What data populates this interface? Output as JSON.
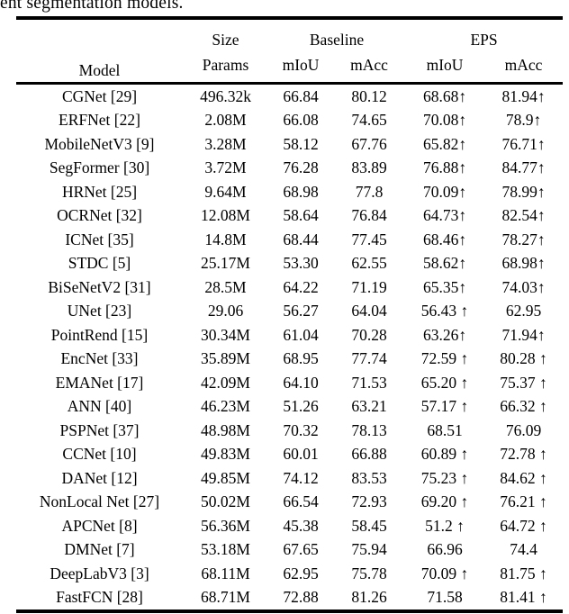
{
  "page": {
    "background": "#ffffff",
    "text_color": "#000000",
    "rule_color": "#000000"
  },
  "caption_fragment": "ent segmentation models.",
  "table": {
    "header": {
      "model": "Model",
      "size": "Size",
      "params": "Params",
      "baseline": "Baseline",
      "eps": "EPS",
      "miou": "mIoU",
      "macc": "mAcc"
    },
    "columns": [
      "Model",
      "Size Params",
      "Baseline mIoU",
      "Baseline mAcc",
      "EPS mIoU",
      "EPS mAcc"
    ],
    "rows": [
      {
        "model": "CGNet [29]",
        "params": "496.32k",
        "baseline_miou": "66.84",
        "baseline_macc": "80.12",
        "eps_miou": "68.68↑",
        "eps_macc": "81.94↑"
      },
      {
        "model": "ERFNet [22]",
        "params": "2.08M",
        "baseline_miou": "66.08",
        "baseline_macc": "74.65",
        "eps_miou": "70.08↑",
        "eps_macc": "78.9↑"
      },
      {
        "model": "MobileNetV3 [9]",
        "params": "3.28M",
        "baseline_miou": "58.12",
        "baseline_macc": "67.76",
        "eps_miou": "65.82↑",
        "eps_macc": "76.71↑"
      },
      {
        "model": "SegFormer [30]",
        "params": "3.72M",
        "baseline_miou": "76.28",
        "baseline_macc": "83.89",
        "eps_miou": "76.88↑",
        "eps_macc": "84.77↑"
      },
      {
        "model": "HRNet [25]",
        "params": "9.64M",
        "baseline_miou": "68.98",
        "baseline_macc": "77.8",
        "eps_miou": "70.09↑",
        "eps_macc": "78.99↑"
      },
      {
        "model": "OCRNet [32]",
        "params": "12.08M",
        "baseline_miou": "58.64",
        "baseline_macc": "76.84",
        "eps_miou": "64.73↑",
        "eps_macc": "82.54↑"
      },
      {
        "model": "ICNet [35]",
        "params": "14.8M",
        "baseline_miou": "68.44",
        "baseline_macc": "77.45",
        "eps_miou": "68.46↑",
        "eps_macc": "78.27↑"
      },
      {
        "model": "STDC [5]",
        "params": "25.17M",
        "baseline_miou": "53.30",
        "baseline_macc": "62.55",
        "eps_miou": "58.62↑",
        "eps_macc": "68.98↑"
      },
      {
        "model": "BiSeNetV2 [31]",
        "params": "28.5M",
        "baseline_miou": "64.22",
        "baseline_macc": "71.19",
        "eps_miou": "65.35↑",
        "eps_macc": "74.03↑"
      },
      {
        "model": "UNet [23]",
        "params": "29.06",
        "baseline_miou": "56.27",
        "baseline_macc": "64.04",
        "eps_miou": "56.43 ↑",
        "eps_macc": "62.95"
      },
      {
        "model": "PointRend [15]",
        "params": "30.34M",
        "baseline_miou": "61.04",
        "baseline_macc": "70.28",
        "eps_miou": "63.26↑",
        "eps_macc": "71.94↑"
      },
      {
        "model": "EncNet [33]",
        "params": "35.89M",
        "baseline_miou": "68.95",
        "baseline_macc": "77.74",
        "eps_miou": "72.59 ↑",
        "eps_macc": "80.28 ↑"
      },
      {
        "model": "EMANet [17]",
        "params": "42.09M",
        "baseline_miou": "64.10",
        "baseline_macc": "71.53",
        "eps_miou": "65.20 ↑",
        "eps_macc": "75.37 ↑"
      },
      {
        "model": "ANN [40]",
        "params": "46.23M",
        "baseline_miou": "51.26",
        "baseline_macc": "63.21",
        "eps_miou": "57.17 ↑",
        "eps_macc": "66.32 ↑"
      },
      {
        "model": "PSPNet [37]",
        "params": "48.98M",
        "baseline_miou": "70.32",
        "baseline_macc": "78.13",
        "eps_miou": "68.51",
        "eps_macc": "76.09"
      },
      {
        "model": "CCNet [10]",
        "params": "49.83M",
        "baseline_miou": "60.01",
        "baseline_macc": "66.88",
        "eps_miou": "60.89 ↑",
        "eps_macc": "72.78 ↑"
      },
      {
        "model": "DANet [12]",
        "params": "49.85M",
        "baseline_miou": "74.12",
        "baseline_macc": "83.53",
        "eps_miou": "75.23 ↑",
        "eps_macc": "84.62 ↑"
      },
      {
        "model": "NonLocal Net [27]",
        "params": "50.02M",
        "baseline_miou": "66.54",
        "baseline_macc": "72.93",
        "eps_miou": "69.20 ↑",
        "eps_macc": "76.21 ↑"
      },
      {
        "model": "APCNet [8]",
        "params": "56.36M",
        "baseline_miou": "45.38",
        "baseline_macc": "58.45",
        "eps_miou": "51.2 ↑",
        "eps_macc": "64.72 ↑"
      },
      {
        "model": "DMNet [7]",
        "params": "53.18M",
        "baseline_miou": "67.65",
        "baseline_macc": "75.94",
        "eps_miou": "66.96",
        "eps_macc": "74.4"
      },
      {
        "model": "DeepLabV3 [3]",
        "params": "68.11M",
        "baseline_miou": "62.95",
        "baseline_macc": "75.78",
        "eps_miou": "70.09 ↑",
        "eps_macc": "81.75 ↑"
      },
      {
        "model": "FastFCN [28]",
        "params": "68.71M",
        "baseline_miou": "72.88",
        "baseline_macc": "81.26",
        "eps_miou": "71.58",
        "eps_macc": "81.41 ↑"
      }
    ]
  }
}
